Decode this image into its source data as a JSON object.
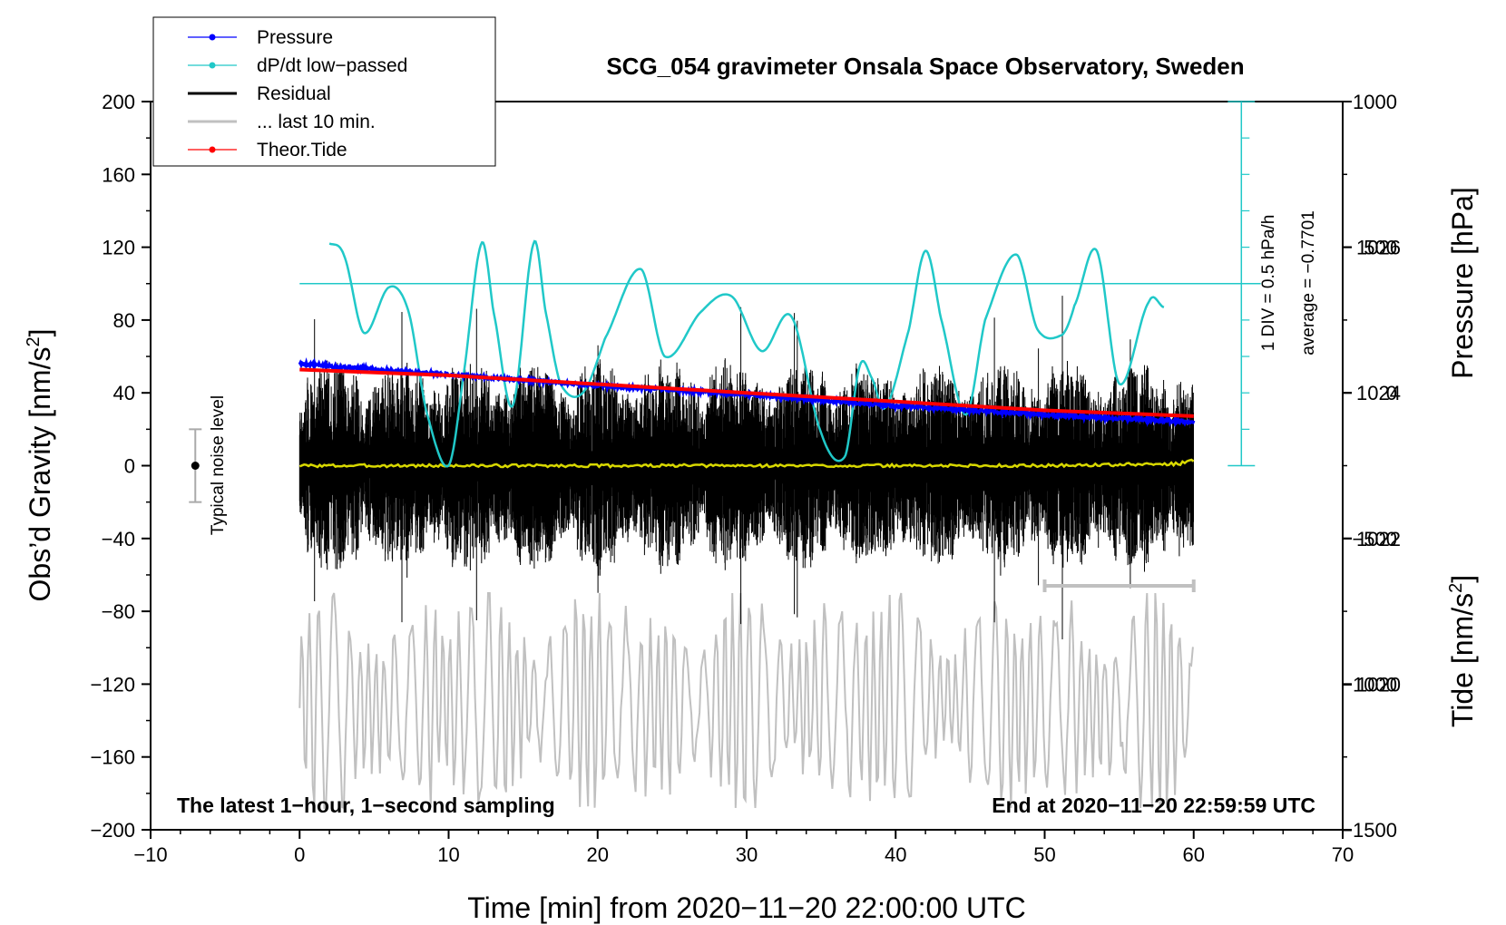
{
  "chart_data": {
    "type": "line",
    "title": "SCG_054 gravimeter Onsala Space Observatory, Sweden",
    "xlabel": "Time [min] from 2020−11−20 22:00:00 UTC",
    "ylabel_left": "Obs’d Gravity [nm/s",
    "ylabel_left_sup": "2",
    "ylabel_left_close": "]",
    "ylabel_right_pressure": "Pressure [hPa]",
    "ylabel_right_tide": "Tide [nm/s",
    "ylabel_right_tide_sup": "2",
    "ylabel_right_tide_close": "]",
    "xlim": [
      -10,
      70
    ],
    "ylim_left": [
      -200,
      200
    ],
    "pressure_lim": [
      1018,
      1028
    ],
    "tide_lim": [
      -1500,
      1000
    ],
    "x_ticks": [
      -10,
      0,
      10,
      20,
      30,
      40,
      50,
      60,
      70
    ],
    "x_tick_labels": [
      "−10",
      "0",
      "10",
      "20",
      "30",
      "40",
      "50",
      "60",
      "70"
    ],
    "left_ticks": [
      200,
      160,
      120,
      80,
      40,
      0,
      -40,
      -80,
      -120,
      -160,
      -200
    ],
    "left_tick_labels": [
      "200",
      "160",
      "120",
      "80",
      "40",
      "0",
      "−40",
      "−80",
      "−120",
      "−160",
      "−200"
    ],
    "pressure_ticks": [
      1020,
      1022,
      1024,
      1026
    ],
    "pressure_tick_labels": [
      "1020",
      "1022",
      "1024",
      "1026"
    ],
    "tide_ticks": [
      1000,
      500,
      0,
      -500,
      -1000,
      -1500
    ],
    "tide_tick_labels": [
      "1000",
      "500",
      "0",
      "−500",
      "−1000",
      "−1500"
    ],
    "legend": [
      {
        "label": "Pressure",
        "color": "#0000ff",
        "marker": true
      },
      {
        "label": "dP/dt low−passed",
        "color": "#20c8c8",
        "marker": true
      },
      {
        "label": "Residual",
        "color": "#000000",
        "marker": false
      },
      {
        "label": "... last 10 min.",
        "color": "#c0c0c0",
        "marker": false
      },
      {
        "label": "Theor.Tide",
        "color": "#ff0000",
        "marker": true
      }
    ],
    "series": [
      {
        "name": "Pressure",
        "axis": "pressure",
        "color": "#0000ff",
        "x": [
          0,
          10,
          20,
          30,
          40,
          50,
          60
        ],
        "values": [
          1024.4,
          1024.25,
          1024.1,
          1023.98,
          1023.82,
          1023.7,
          1023.6
        ]
      },
      {
        "name": "dP/dt low−passed",
        "axis": "left",
        "color": "#20c8c8",
        "x": [
          2,
          3,
          4.3,
          6,
          7.3,
          8.5,
          10,
          11,
          12.2,
          13,
          14.3,
          15.7,
          16.5,
          17.5,
          19,
          20.5,
          22.9,
          24.5,
          27,
          29,
          31,
          33,
          35,
          36.6,
          37.6,
          38.4,
          39.3,
          40.9,
          42,
          43,
          44.7,
          46,
          48.1,
          49.5,
          51.2,
          52,
          53.5,
          55,
          57,
          58
        ],
        "values": [
          122,
          115,
          73,
          98,
          85,
          30,
          0,
          50,
          122,
          85,
          33,
          122,
          85,
          45,
          40,
          70,
          108,
          60,
          85,
          93,
          63,
          82,
          18,
          5,
          55,
          48,
          32,
          75,
          118,
          82,
          28,
          80,
          116,
          75,
          72,
          88,
          118,
          45,
          90,
          87
        ]
      },
      {
        "name": "Residual",
        "axis": "left",
        "color": "#000000",
        "note": "1-second residual, envelope approx ±45 nm/s2 with spikes to ±85"
      },
      {
        "name": "Residual low-passed",
        "axis": "left",
        "color": "#d8d800",
        "x": [
          0,
          10,
          20,
          30,
          40,
          50,
          59,
          60
        ],
        "values": [
          0,
          0,
          0,
          0,
          0,
          0,
          1,
          3
        ]
      },
      {
        "name": "... last 10 min.",
        "axis": "left",
        "color": "#c0c0c0",
        "note": "last 10 min of residual stretched over 0–60 min, centered near −130 nm/s2"
      },
      {
        "name": "Theor.Tide",
        "axis": "tide",
        "color": "#ff0000",
        "x": [
          0,
          10,
          20,
          30,
          40,
          50,
          60
        ],
        "values": [
          80,
          60,
          30,
          0,
          -30,
          -60,
          -80
        ]
      }
    ],
    "dpdt_reference": {
      "label": "1 DIV = 0.5 hPa/h",
      "average": "average = −0.7701"
    },
    "noise": {
      "label": "Typical noise level",
      "x": -7,
      "center": 0,
      "halfwidth": 20
    },
    "last10_bracket": {
      "x": [
        50,
        60
      ],
      "y": -66
    },
    "annotations": {
      "bottom_left": "The latest 1−hour, 1−second sampling",
      "bottom_right": "End at 2020−11−20 22:59:59 UTC"
    }
  }
}
